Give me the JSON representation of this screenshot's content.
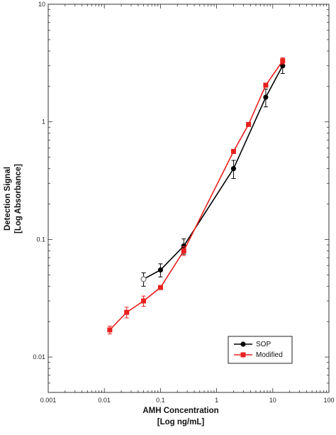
{
  "chart_data": {
    "type": "line",
    "xscale": "log",
    "yscale": "log",
    "xlim": [
      0.001,
      100
    ],
    "ylim": [
      0.005,
      10
    ],
    "x_tick_labels": [
      "0.001",
      "0.01",
      "0.1",
      "1",
      "10",
      "100"
    ],
    "y_tick_labels": [
      "0.01",
      "0.1",
      "1",
      "10"
    ],
    "xlabel_line1": "AMH Concentration",
    "xlabel_line2": "[Log ng/mL]",
    "ylabel_line1": "Detection Signal",
    "ylabel_line2": "[Log Absorbance]",
    "legend_position": "bottom-right",
    "series": [
      {
        "name": "SOP",
        "color": "#000000",
        "marker": "circle",
        "points": [
          {
            "x": 0.05,
            "y": 0.046,
            "err": 0.006,
            "hollow": true
          },
          {
            "x": 0.1,
            "y": 0.055,
            "err": 0.007
          },
          {
            "x": 0.26,
            "y": 0.088,
            "err": 0.013
          },
          {
            "x": 2.0,
            "y": 0.4,
            "err": 0.07
          },
          {
            "x": 7.5,
            "y": 1.62,
            "err": 0.28
          },
          {
            "x": 15,
            "y": 3.0,
            "err": 0.42
          }
        ]
      },
      {
        "name": "Modified",
        "color": "#e8201e",
        "marker": "square",
        "points": [
          {
            "x": 0.0125,
            "y": 0.017,
            "err": 0.0013
          },
          {
            "x": 0.025,
            "y": 0.024,
            "err": 0.0025
          },
          {
            "x": 0.05,
            "y": 0.03,
            "err": 0.003
          },
          {
            "x": 0.1,
            "y": 0.039,
            "err": 0
          },
          {
            "x": 0.26,
            "y": 0.08,
            "err": 0.007
          },
          {
            "x": 2.0,
            "y": 0.56,
            "err": 0
          },
          {
            "x": 3.7,
            "y": 0.95,
            "err": 0
          },
          {
            "x": 7.5,
            "y": 2.05,
            "err": 0
          },
          {
            "x": 15,
            "y": 3.3,
            "err": 0.2
          }
        ]
      }
    ]
  }
}
